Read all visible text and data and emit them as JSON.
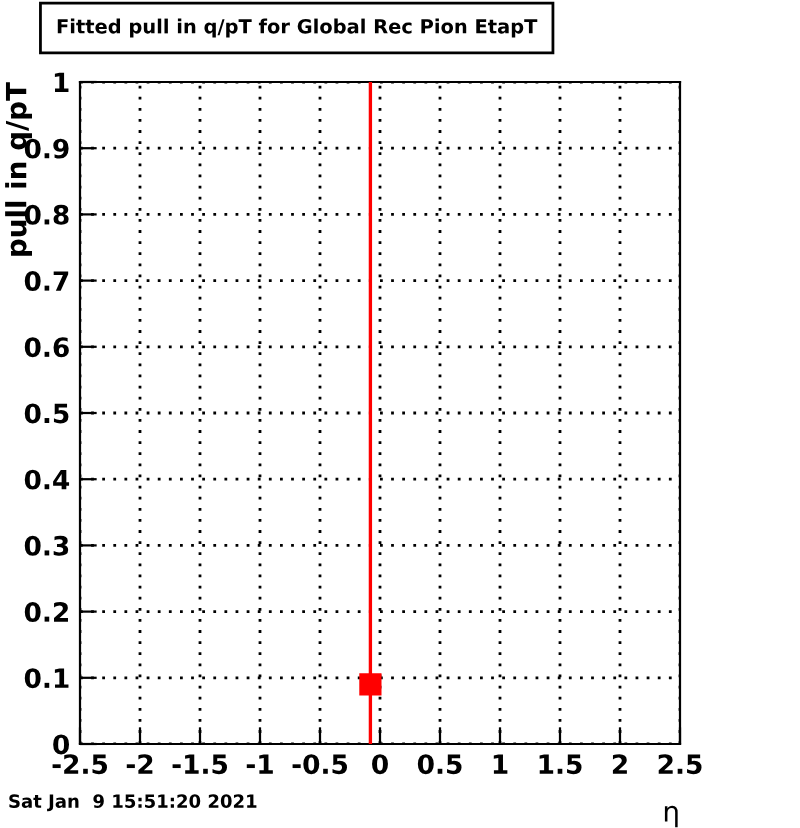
{
  "chart_data": {
    "type": "scatter",
    "title": "Fitted pull in q/pT for Global Rec Pion EtapT",
    "xlabel": "η",
    "ylabel": "pull in q/pT",
    "x": [
      -0.08
    ],
    "series": [
      {
        "color": "#ff0000",
        "values": [
          0.09
        ],
        "errors": [
          [
            0,
            1
          ]
        ]
      }
    ],
    "xlim": [
      -2.5,
      2.5
    ],
    "ylim": [
      0,
      1
    ],
    "xticks": [
      {
        "value": -2.5,
        "label": "-2.5"
      },
      {
        "value": -2,
        "label": "-2"
      },
      {
        "value": -1.5,
        "label": "-1.5"
      },
      {
        "value": -1,
        "label": "-1"
      },
      {
        "value": -0.5,
        "label": "-0.5"
      },
      0,
      0.5,
      1,
      1.5,
      2,
      2.5
    ],
    "yticks": [
      0,
      0.1,
      0.2,
      0.3,
      0.4,
      0.5,
      0.6,
      0.7,
      0.8,
      0.9,
      1
    ],
    "grid": true,
    "marker": "square",
    "annotations": [
      "Sat Jan  9 15:51:20 2021"
    ]
  }
}
